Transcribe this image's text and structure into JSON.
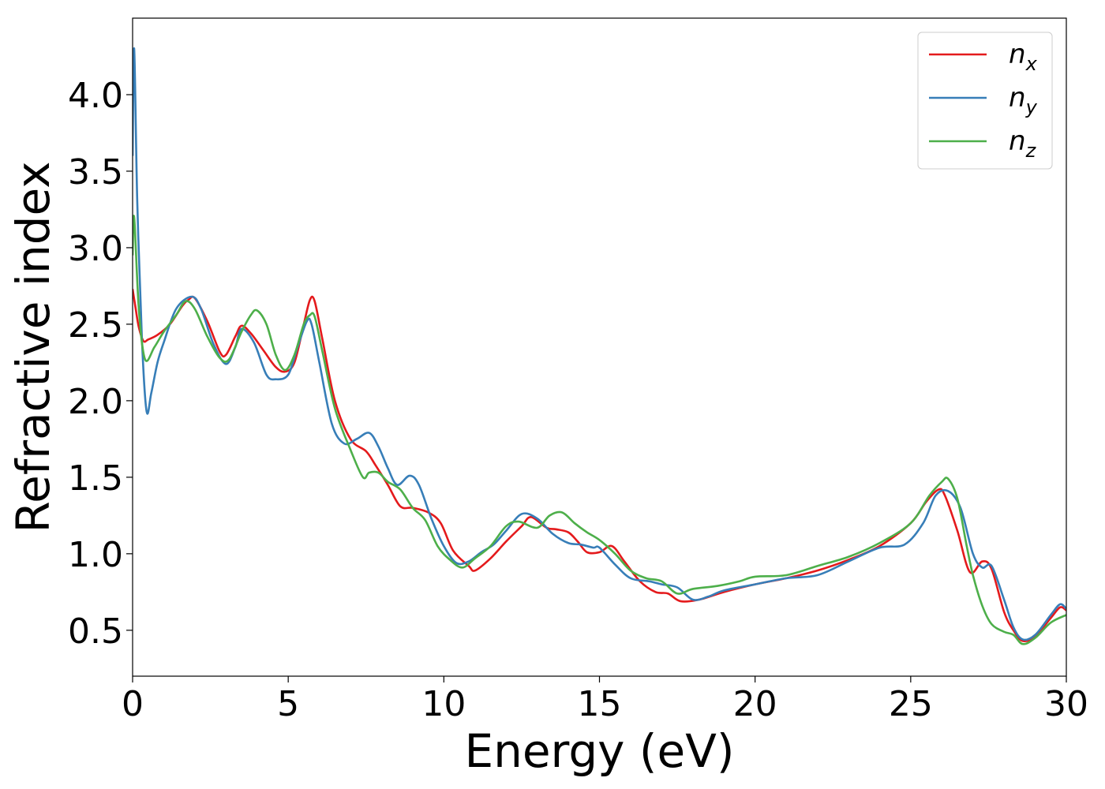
{
  "chart_data": {
    "type": "line",
    "title": "",
    "xlabel": "Energy (eV)",
    "ylabel": "Refractive index",
    "xlim": [
      0,
      30
    ],
    "ylim": [
      0.2,
      4.5
    ],
    "xticks": [
      0,
      5,
      10,
      15,
      20,
      25,
      30
    ],
    "xtick_labels": [
      "0",
      "5",
      "10",
      "15",
      "20",
      "25",
      "30"
    ],
    "yticks": [
      0.5,
      1.0,
      1.5,
      2.0,
      2.5,
      3.0,
      3.5,
      4.0
    ],
    "ytick_labels": [
      "0.5",
      "1.0",
      "1.5",
      "2.0",
      "2.5",
      "3.0",
      "3.5",
      "4.0"
    ],
    "grid": false,
    "legend_position": "top-right",
    "series": [
      {
        "name": "n",
        "subscript": "x",
        "color": "#e41a1c",
        "x": [
          0,
          0.1,
          0.2,
          0.35,
          0.5,
          0.8,
          1.2,
          1.6,
          1.8,
          2.0,
          2.4,
          2.8,
          3.0,
          3.3,
          3.5,
          3.8,
          4.2,
          4.6,
          4.9,
          5.2,
          5.5,
          5.7,
          5.85,
          6.1,
          6.5,
          7.0,
          7.5,
          7.8,
          8.2,
          8.6,
          9.0,
          9.5,
          9.9,
          10.3,
          10.8,
          11.0,
          11.5,
          12.0,
          12.5,
          12.8,
          13.3,
          13.6,
          14.0,
          14.3,
          14.6,
          15.0,
          15.4,
          15.8,
          16.3,
          16.8,
          17.2,
          17.6,
          18.2,
          19.0,
          20.0,
          21.0,
          22.0,
          23.0,
          24.0,
          25.0,
          25.5,
          25.9,
          26.1,
          26.5,
          26.9,
          27.3,
          27.6,
          28.0,
          28.3,
          28.6,
          29.0,
          29.5,
          29.8,
          30.0
        ],
        "y": [
          2.73,
          2.6,
          2.48,
          2.39,
          2.4,
          2.43,
          2.5,
          2.62,
          2.66,
          2.67,
          2.52,
          2.32,
          2.3,
          2.42,
          2.49,
          2.44,
          2.33,
          2.22,
          2.19,
          2.25,
          2.5,
          2.66,
          2.65,
          2.4,
          2.0,
          1.75,
          1.67,
          1.58,
          1.45,
          1.31,
          1.3,
          1.27,
          1.2,
          1.02,
          0.92,
          0.89,
          0.97,
          1.08,
          1.18,
          1.24,
          1.17,
          1.16,
          1.14,
          1.08,
          1.01,
          1.01,
          1.05,
          0.95,
          0.82,
          0.75,
          0.74,
          0.69,
          0.7,
          0.75,
          0.8,
          0.84,
          0.89,
          0.96,
          1.05,
          1.2,
          1.34,
          1.42,
          1.38,
          1.15,
          0.88,
          0.95,
          0.9,
          0.62,
          0.5,
          0.43,
          0.46,
          0.58,
          0.65,
          0.63
        ]
      },
      {
        "name": "n",
        "subscript": "y",
        "color": "#377eb8",
        "x": [
          0,
          0.05,
          0.15,
          0.3,
          0.45,
          0.6,
          0.8,
          1.0,
          1.4,
          1.9,
          2.2,
          2.6,
          3.0,
          3.3,
          3.5,
          3.9,
          4.3,
          4.6,
          5.0,
          5.3,
          5.6,
          5.75,
          6.0,
          6.4,
          6.8,
          7.2,
          7.6,
          7.9,
          8.2,
          8.5,
          8.9,
          9.2,
          9.6,
          10.0,
          10.4,
          10.8,
          11.2,
          11.6,
          12.0,
          12.5,
          13.0,
          13.5,
          14.0,
          14.4,
          14.8,
          15.0,
          15.5,
          16.0,
          16.6,
          17.0,
          17.5,
          18.0,
          18.5,
          19.0,
          20.0,
          21.0,
          22.0,
          23.0,
          24.0,
          24.8,
          25.4,
          25.8,
          26.2,
          26.6,
          27.0,
          27.3,
          27.6,
          28.0,
          28.3,
          28.6,
          29.0,
          29.5,
          29.8,
          30.0
        ],
        "y": [
          3.6,
          4.3,
          3.3,
          2.4,
          1.93,
          2.05,
          2.25,
          2.38,
          2.6,
          2.68,
          2.6,
          2.37,
          2.24,
          2.35,
          2.47,
          2.38,
          2.17,
          2.14,
          2.17,
          2.35,
          2.52,
          2.5,
          2.25,
          1.85,
          1.72,
          1.75,
          1.79,
          1.7,
          1.56,
          1.45,
          1.51,
          1.45,
          1.23,
          1.05,
          0.94,
          0.95,
          1.01,
          1.06,
          1.15,
          1.26,
          1.23,
          1.13,
          1.07,
          1.06,
          1.04,
          1.04,
          0.93,
          0.84,
          0.82,
          0.8,
          0.78,
          0.7,
          0.72,
          0.76,
          0.8,
          0.84,
          0.86,
          0.95,
          1.04,
          1.06,
          1.2,
          1.38,
          1.41,
          1.3,
          1.0,
          0.91,
          0.92,
          0.7,
          0.52,
          0.44,
          0.47,
          0.6,
          0.67,
          0.64
        ]
      },
      {
        "name": "n",
        "subscript": "z",
        "color": "#4daf4a",
        "x": [
          0,
          0.05,
          0.2,
          0.4,
          0.7,
          1.0,
          1.4,
          1.7,
          2.0,
          2.4,
          2.8,
          3.1,
          3.5,
          3.8,
          4.0,
          4.3,
          4.6,
          4.9,
          5.2,
          5.5,
          5.7,
          5.85,
          6.1,
          6.5,
          7.0,
          7.4,
          7.6,
          7.9,
          8.2,
          8.6,
          9.0,
          9.4,
          9.8,
          10.2,
          10.6,
          11.0,
          11.5,
          12.0,
          12.4,
          13.0,
          13.4,
          13.8,
          14.2,
          14.6,
          15.0,
          15.5,
          16.0,
          16.5,
          17.0,
          17.5,
          18.0,
          18.8,
          19.5,
          20.0,
          21.0,
          22.0,
          23.0,
          24.0,
          25.0,
          25.6,
          26.0,
          26.2,
          26.5,
          26.8,
          27.0,
          27.3,
          27.6,
          28.0,
          28.3,
          28.6,
          29.0,
          29.5,
          30.0
        ],
        "y": [
          2.95,
          3.2,
          2.6,
          2.27,
          2.35,
          2.45,
          2.56,
          2.65,
          2.6,
          2.42,
          2.28,
          2.27,
          2.45,
          2.56,
          2.59,
          2.5,
          2.3,
          2.2,
          2.3,
          2.5,
          2.56,
          2.55,
          2.32,
          1.95,
          1.68,
          1.5,
          1.53,
          1.53,
          1.47,
          1.42,
          1.3,
          1.22,
          1.05,
          0.96,
          0.91,
          0.97,
          1.05,
          1.18,
          1.21,
          1.17,
          1.25,
          1.27,
          1.2,
          1.14,
          1.09,
          1.0,
          0.89,
          0.84,
          0.82,
          0.74,
          0.77,
          0.79,
          0.82,
          0.85,
          0.86,
          0.92,
          0.98,
          1.07,
          1.2,
          1.38,
          1.47,
          1.49,
          1.36,
          1.05,
          0.86,
          0.66,
          0.54,
          0.49,
          0.47,
          0.41,
          0.45,
          0.55,
          0.6
        ]
      }
    ]
  }
}
